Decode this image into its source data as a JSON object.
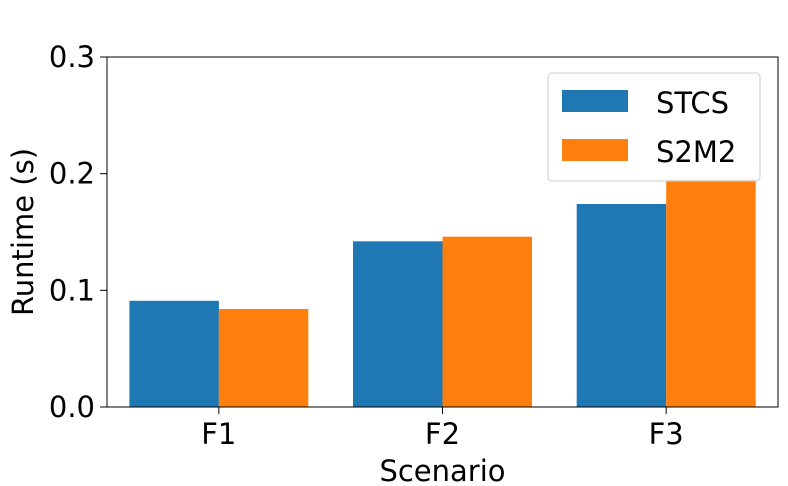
{
  "chart_data": {
    "type": "bar",
    "title": "",
    "xlabel": "Scenario",
    "ylabel": "Runtime (s)",
    "categories": [
      "F1",
      "F2",
      "F3"
    ],
    "series": [
      {
        "name": "STCS",
        "color": "#1f77b4",
        "values": [
          0.091,
          0.142,
          0.174
        ]
      },
      {
        "name": "S2M2",
        "color": "#ff7f0e",
        "values": [
          0.084,
          0.146,
          0.195
        ]
      }
    ],
    "ylim": [
      0,
      0.3
    ],
    "yticks": [
      "0.0",
      "0.1",
      "0.2",
      "0.3"
    ],
    "grid": false,
    "legend_position": "top-right"
  }
}
